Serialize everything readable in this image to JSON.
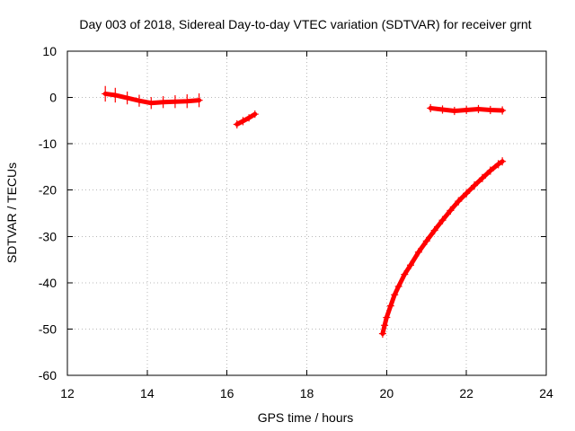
{
  "chart_data": {
    "type": "scatter",
    "title": "Day 003 of 2018, Sidereal Day-to-day VTEC variation (SDTVAR) for receiver grnt",
    "xlabel": "GPS time / hours",
    "ylabel": "SDTVAR / TECUs",
    "xlim": [
      12,
      24
    ],
    "ylim": [
      -60,
      10
    ],
    "xticks": [
      "12",
      "14",
      "16",
      "18",
      "20",
      "22",
      "24"
    ],
    "yticks": [
      "10",
      "0",
      "-10",
      "-20",
      "-30",
      "-40",
      "-50",
      "-60"
    ],
    "grid": true,
    "marker": "plus",
    "colors": {
      "series": "#ff0000",
      "axis": "#000000",
      "grid": "#b8b8b8"
    },
    "series": [
      {
        "x": [
          12.95,
          13.2,
          13.5,
          13.8,
          14.1,
          14.4,
          14.7,
          15.0,
          15.3
        ],
        "y": [
          0.8,
          0.5,
          -0.1,
          -0.7,
          -1.2,
          -1.0,
          -0.9,
          -0.8,
          -0.6
        ],
        "spread": [
          1.3,
          1.2,
          1.0,
          0.9,
          0.9,
          0.9,
          1.0,
          1.1,
          1.1
        ]
      },
      {
        "x": [
          16.25,
          16.4,
          16.55,
          16.7
        ],
        "y": [
          -5.8,
          -5.1,
          -4.4,
          -3.6
        ],
        "spread": [
          0.5,
          0.5,
          0.4,
          0.4
        ]
      },
      {
        "x": [
          21.1,
          21.4,
          21.7,
          22.0,
          22.3,
          22.6,
          22.9
        ],
        "y": [
          -2.3,
          -2.6,
          -2.9,
          -2.7,
          -2.5,
          -2.7,
          -2.8
        ],
        "spread": [
          0.5,
          0.5,
          0.5,
          0.5,
          0.5,
          0.5,
          0.5
        ]
      },
      {
        "x": [
          19.9,
          19.95,
          20.0,
          20.1,
          20.2,
          20.3,
          20.45,
          20.6,
          20.8,
          21.0,
          21.2,
          21.4,
          21.6,
          21.8,
          22.0,
          22.2,
          22.4,
          22.6,
          22.8,
          22.9
        ],
        "y": [
          -51.0,
          -49.2,
          -47.5,
          -45.0,
          -42.6,
          -40.8,
          -38.2,
          -36.2,
          -33.4,
          -31.0,
          -28.7,
          -26.5,
          -24.4,
          -22.4,
          -20.7,
          -19.0,
          -17.4,
          -15.8,
          -14.4,
          -13.8
        ],
        "spread": [
          0.5,
          0.5,
          0.5,
          0.5,
          0.5,
          0.5,
          0.5,
          0.5,
          0.5,
          0.5,
          0.5,
          0.5,
          0.5,
          0.5,
          0.5,
          0.5,
          0.5,
          0.5,
          0.5,
          0.5
        ]
      }
    ]
  }
}
